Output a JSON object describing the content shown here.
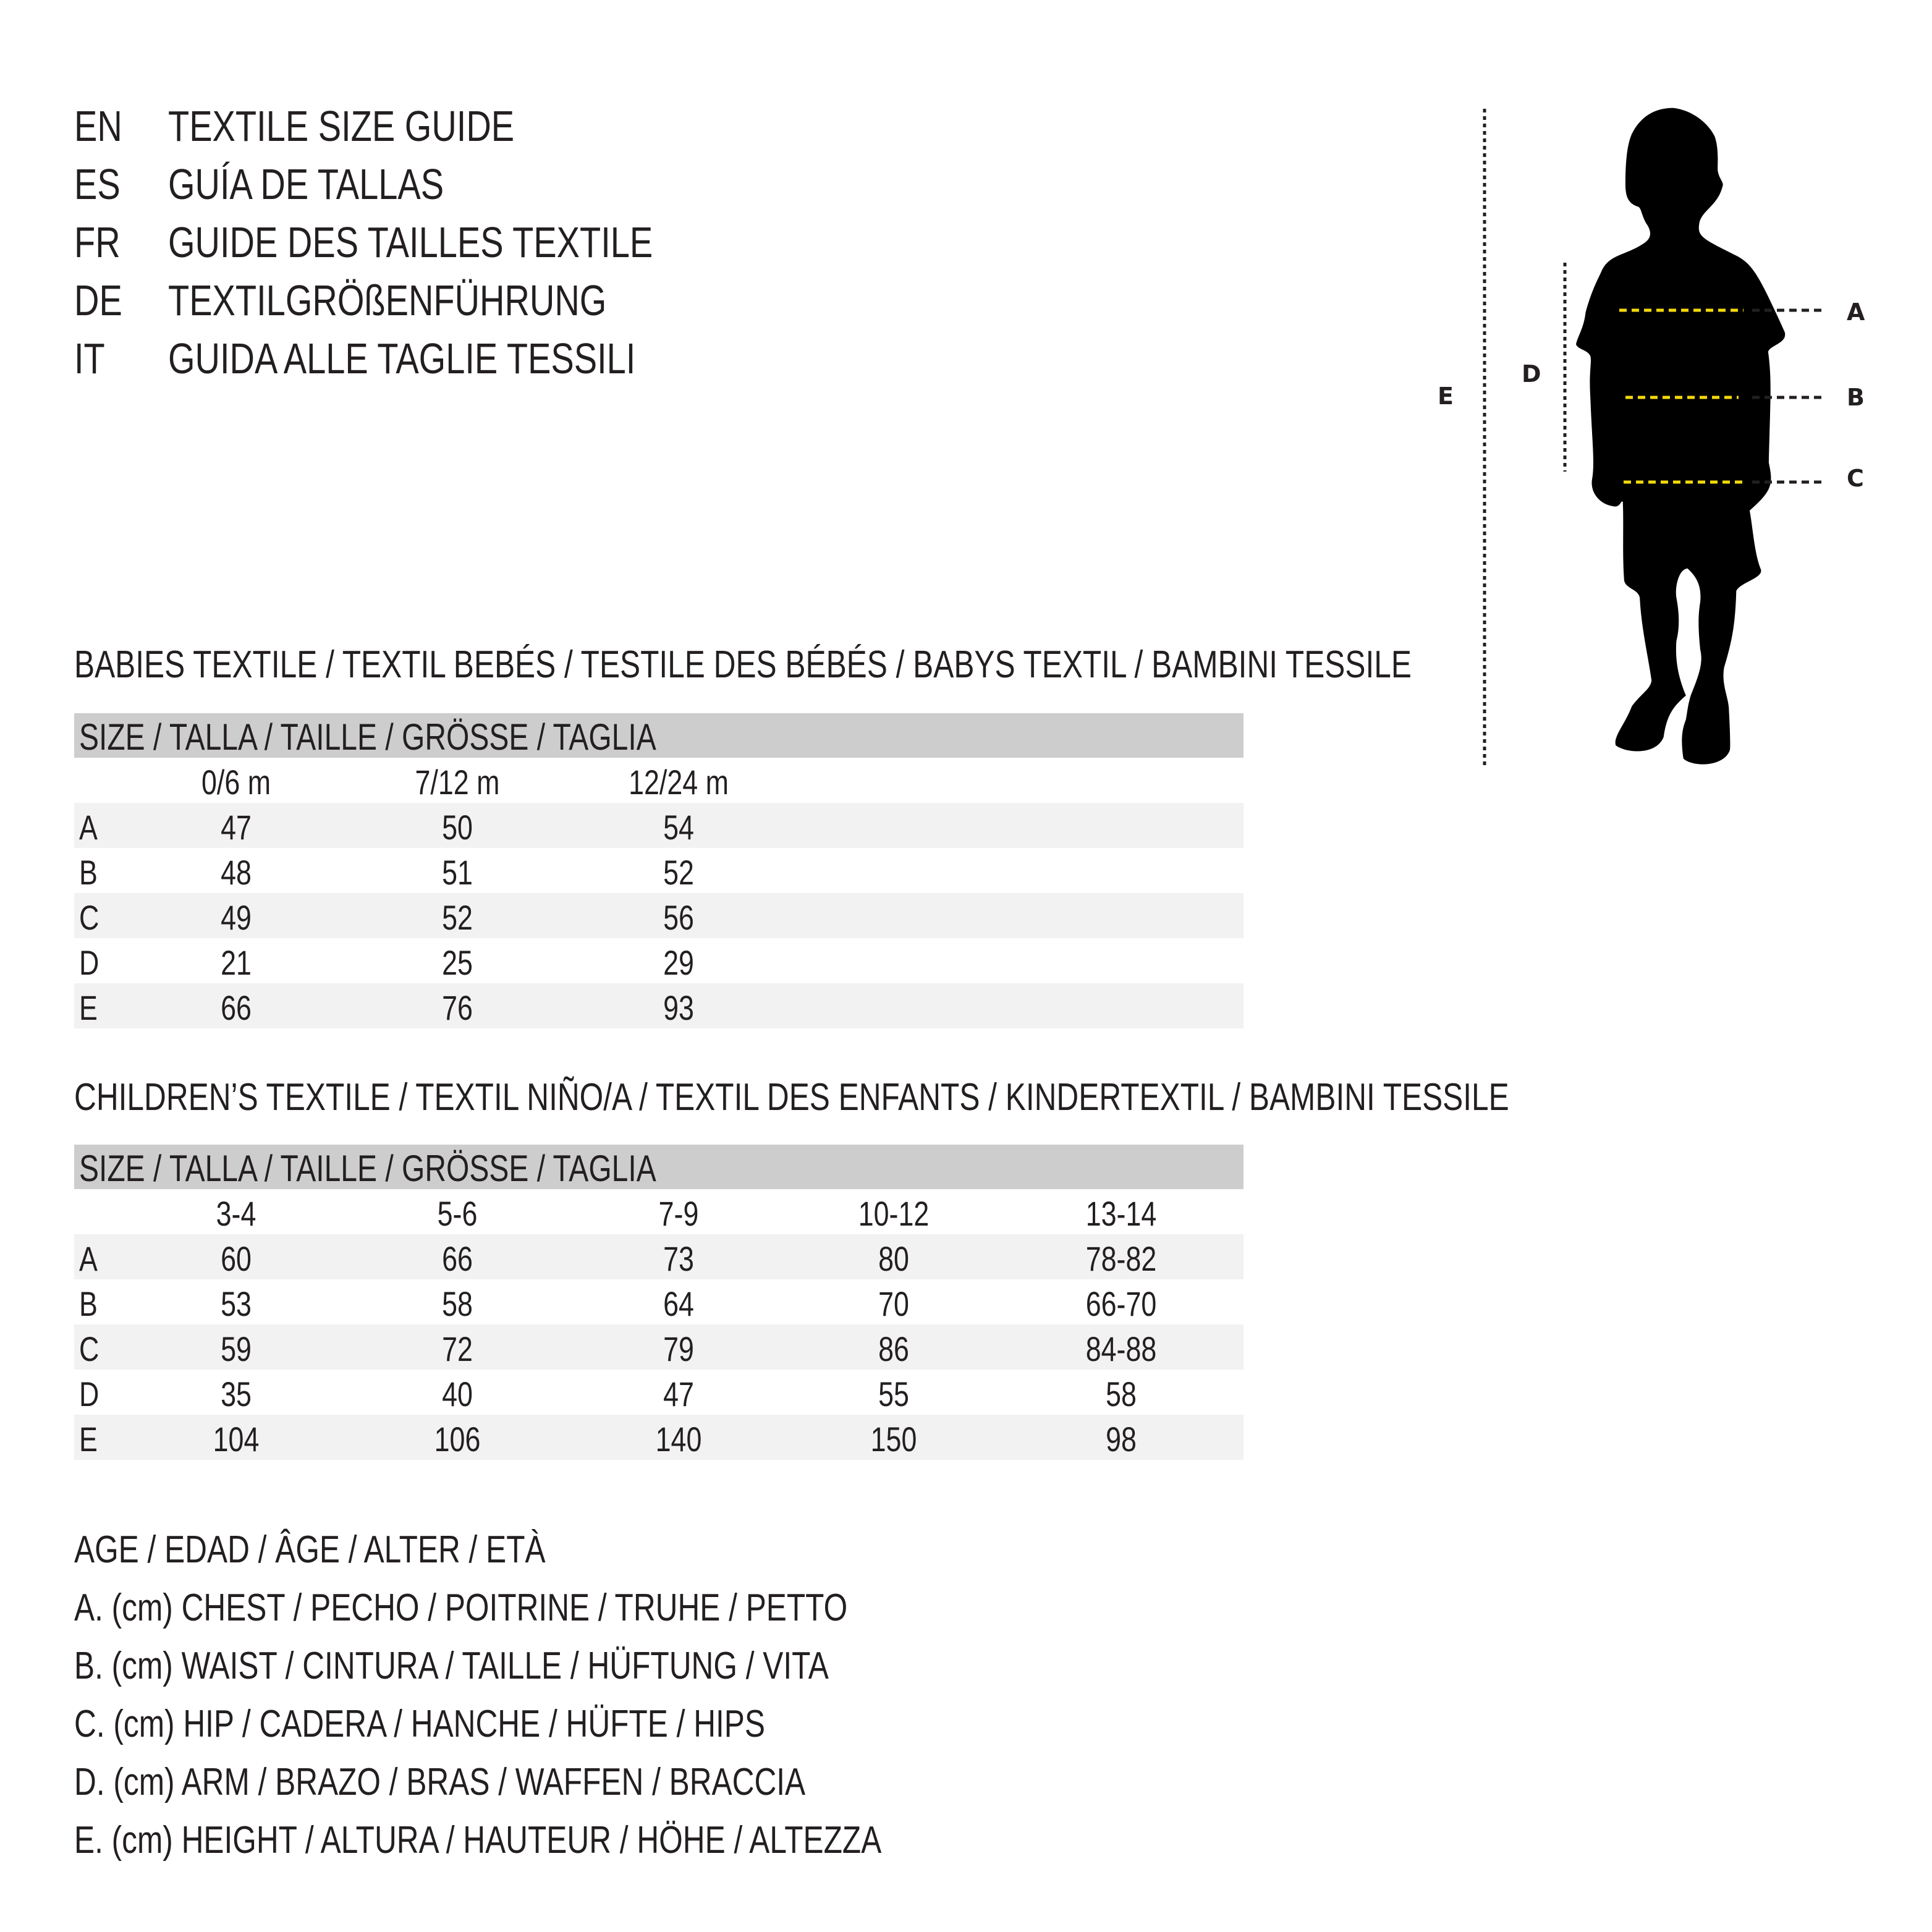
{
  "titles": [
    {
      "code": "EN",
      "text": "TEXTILE SIZE GUIDE"
    },
    {
      "code": "ES",
      "text": "GUÍA DE TALLAS"
    },
    {
      "code": "FR",
      "text": "GUIDE DES TAILLES TEXTILE"
    },
    {
      "code": "DE",
      "text": "TEXTILGRÖßENFÜHRUNG"
    },
    {
      "code": "IT",
      "text": "GUIDA ALLE TAGLIE TESSILI"
    }
  ],
  "babies": {
    "heading": "BABIES TEXTILE / TEXTIL BEBÉS / TESTILE DES BÉBÉS / BABYS TEXTIL / BAMBINI TESSILE",
    "size_header": "SIZE / TALLA / TAILLE / GRÖSSE / TAGLIA",
    "columns": [
      "0/6 m",
      "7/12 m",
      "12/24 m"
    ],
    "rows": [
      {
        "label": "A",
        "values": [
          "47",
          "50",
          "54"
        ]
      },
      {
        "label": "B",
        "values": [
          "48",
          "51",
          "52"
        ]
      },
      {
        "label": "C",
        "values": [
          "49",
          "52",
          "56"
        ]
      },
      {
        "label": "D",
        "values": [
          "21",
          "25",
          "29"
        ]
      },
      {
        "label": "E",
        "values": [
          "66",
          "76",
          "93"
        ]
      }
    ]
  },
  "children": {
    "heading": "CHILDREN’S TEXTILE / TEXTIL NIÑO/A / TEXTIL DES ENFANTS / KINDERTEXTIL / BAMBINI TESSILE",
    "size_header": "SIZE / TALLA / TAILLE / GRÖSSE / TAGLIA",
    "columns": [
      "3-4",
      "5-6",
      "7-9",
      "10-12",
      "13-14"
    ],
    "rows": [
      {
        "label": "A",
        "values": [
          "60",
          "66",
          "73",
          "80",
          "78-82"
        ]
      },
      {
        "label": "B",
        "values": [
          "53",
          "58",
          "64",
          "70",
          "66-70"
        ]
      },
      {
        "label": "C",
        "values": [
          "59",
          "72",
          "79",
          "86",
          "84-88"
        ]
      },
      {
        "label": "D",
        "values": [
          "35",
          "40",
          "47",
          "55",
          "58"
        ]
      },
      {
        "label": "E",
        "values": [
          "104",
          "106",
          "140",
          "150",
          "98"
        ]
      }
    ]
  },
  "legend": [
    "AGE / EDAD / ÂGE / ALTER / ETÀ",
    "A. (cm) CHEST / PECHO / POITRINE / TRUHE / PETTO",
    "B. (cm) WAIST / CINTURA / TAILLE / HÜFTUNG / VITA",
    "C. (cm) HIP / CADERA / HANCHE / HÜFTE / HIPS",
    "D. (cm) ARM / BRAZO / BRAS / WAFFEN / BRACCIA",
    "E. (cm) HEIGHT / ALTURA / HAUTEUR / HÖHE / ALTEZZA"
  ],
  "figure": {
    "icon": "child-silhouette-icon",
    "labels": {
      "A": "A",
      "B": "B",
      "C": "C",
      "D": "D",
      "E": "E"
    },
    "colors": {
      "measure_line": "#f5d90a",
      "text": "#231f20",
      "header_bg": "#cdcdce",
      "row_alt_bg": "#f2f2f2"
    }
  }
}
